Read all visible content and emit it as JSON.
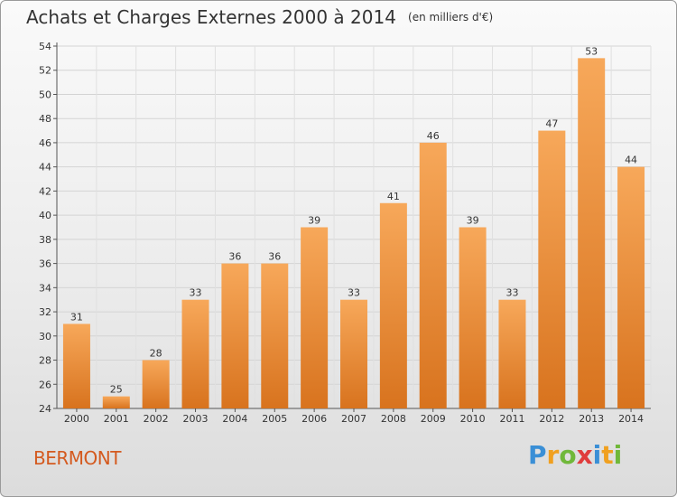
{
  "title": "Achats et Charges Externes 2000 à 2014",
  "subtitle": "(en milliers d'€)",
  "commune": "BERMONT",
  "brand": {
    "letters": [
      "P",
      "r",
      "o",
      "x",
      "i",
      "t",
      "i"
    ],
    "colors": [
      "#3a8fd6",
      "#f0a020",
      "#70b83a",
      "#e03c3c",
      "#3a8fd6",
      "#f0a020",
      "#70b83a"
    ]
  },
  "colors": {
    "bar_top": "#f7a85a",
    "bar_bottom": "#d8731e",
    "commune": "#d45a1f"
  },
  "chart_data": {
    "type": "bar",
    "categories": [
      "2000",
      "2001",
      "2002",
      "2003",
      "2004",
      "2005",
      "2006",
      "2007",
      "2008",
      "2009",
      "2010",
      "2011",
      "2012",
      "2013",
      "2014"
    ],
    "values": [
      31,
      25,
      28,
      33,
      36,
      36,
      39,
      33,
      41,
      46,
      39,
      33,
      47,
      53,
      44
    ],
    "ylim": [
      24,
      54
    ],
    "yticks": [
      24,
      26,
      28,
      30,
      32,
      34,
      36,
      38,
      40,
      42,
      44,
      46,
      48,
      50,
      52,
      54
    ],
    "grid": true
  }
}
